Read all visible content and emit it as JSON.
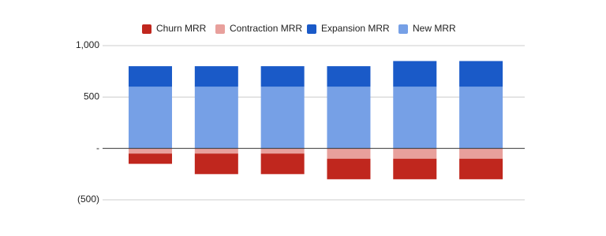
{
  "chart_data": {
    "type": "stacked-bar",
    "categories": [
      null,
      null,
      null,
      null,
      null,
      null
    ],
    "series": [
      {
        "name": "Churn MRR",
        "color": "#c0271e",
        "values": [
          -100,
          -200,
          -200,
          -200,
          -200,
          -200
        ]
      },
      {
        "name": "Contraction MRR",
        "color": "#e8a09c",
        "values": [
          -50,
          -50,
          -50,
          -100,
          -100,
          -100
        ]
      },
      {
        "name": "Expansion MRR",
        "color": "#1a5ac8",
        "values": [
          200,
          200,
          200,
          200,
          250,
          250
        ]
      },
      {
        "name": "New MRR",
        "color": "#76a0e6",
        "values": [
          600,
          600,
          600,
          600,
          600,
          600
        ]
      }
    ],
    "ylim": [
      -500,
      1000
    ],
    "yticks": [
      {
        "value": -500,
        "label": "(500)"
      },
      {
        "value": 0,
        "label": "-"
      },
      500,
      {
        "value": 1000,
        "label": "1,000"
      }
    ],
    "grid": true,
    "legend": "top"
  }
}
